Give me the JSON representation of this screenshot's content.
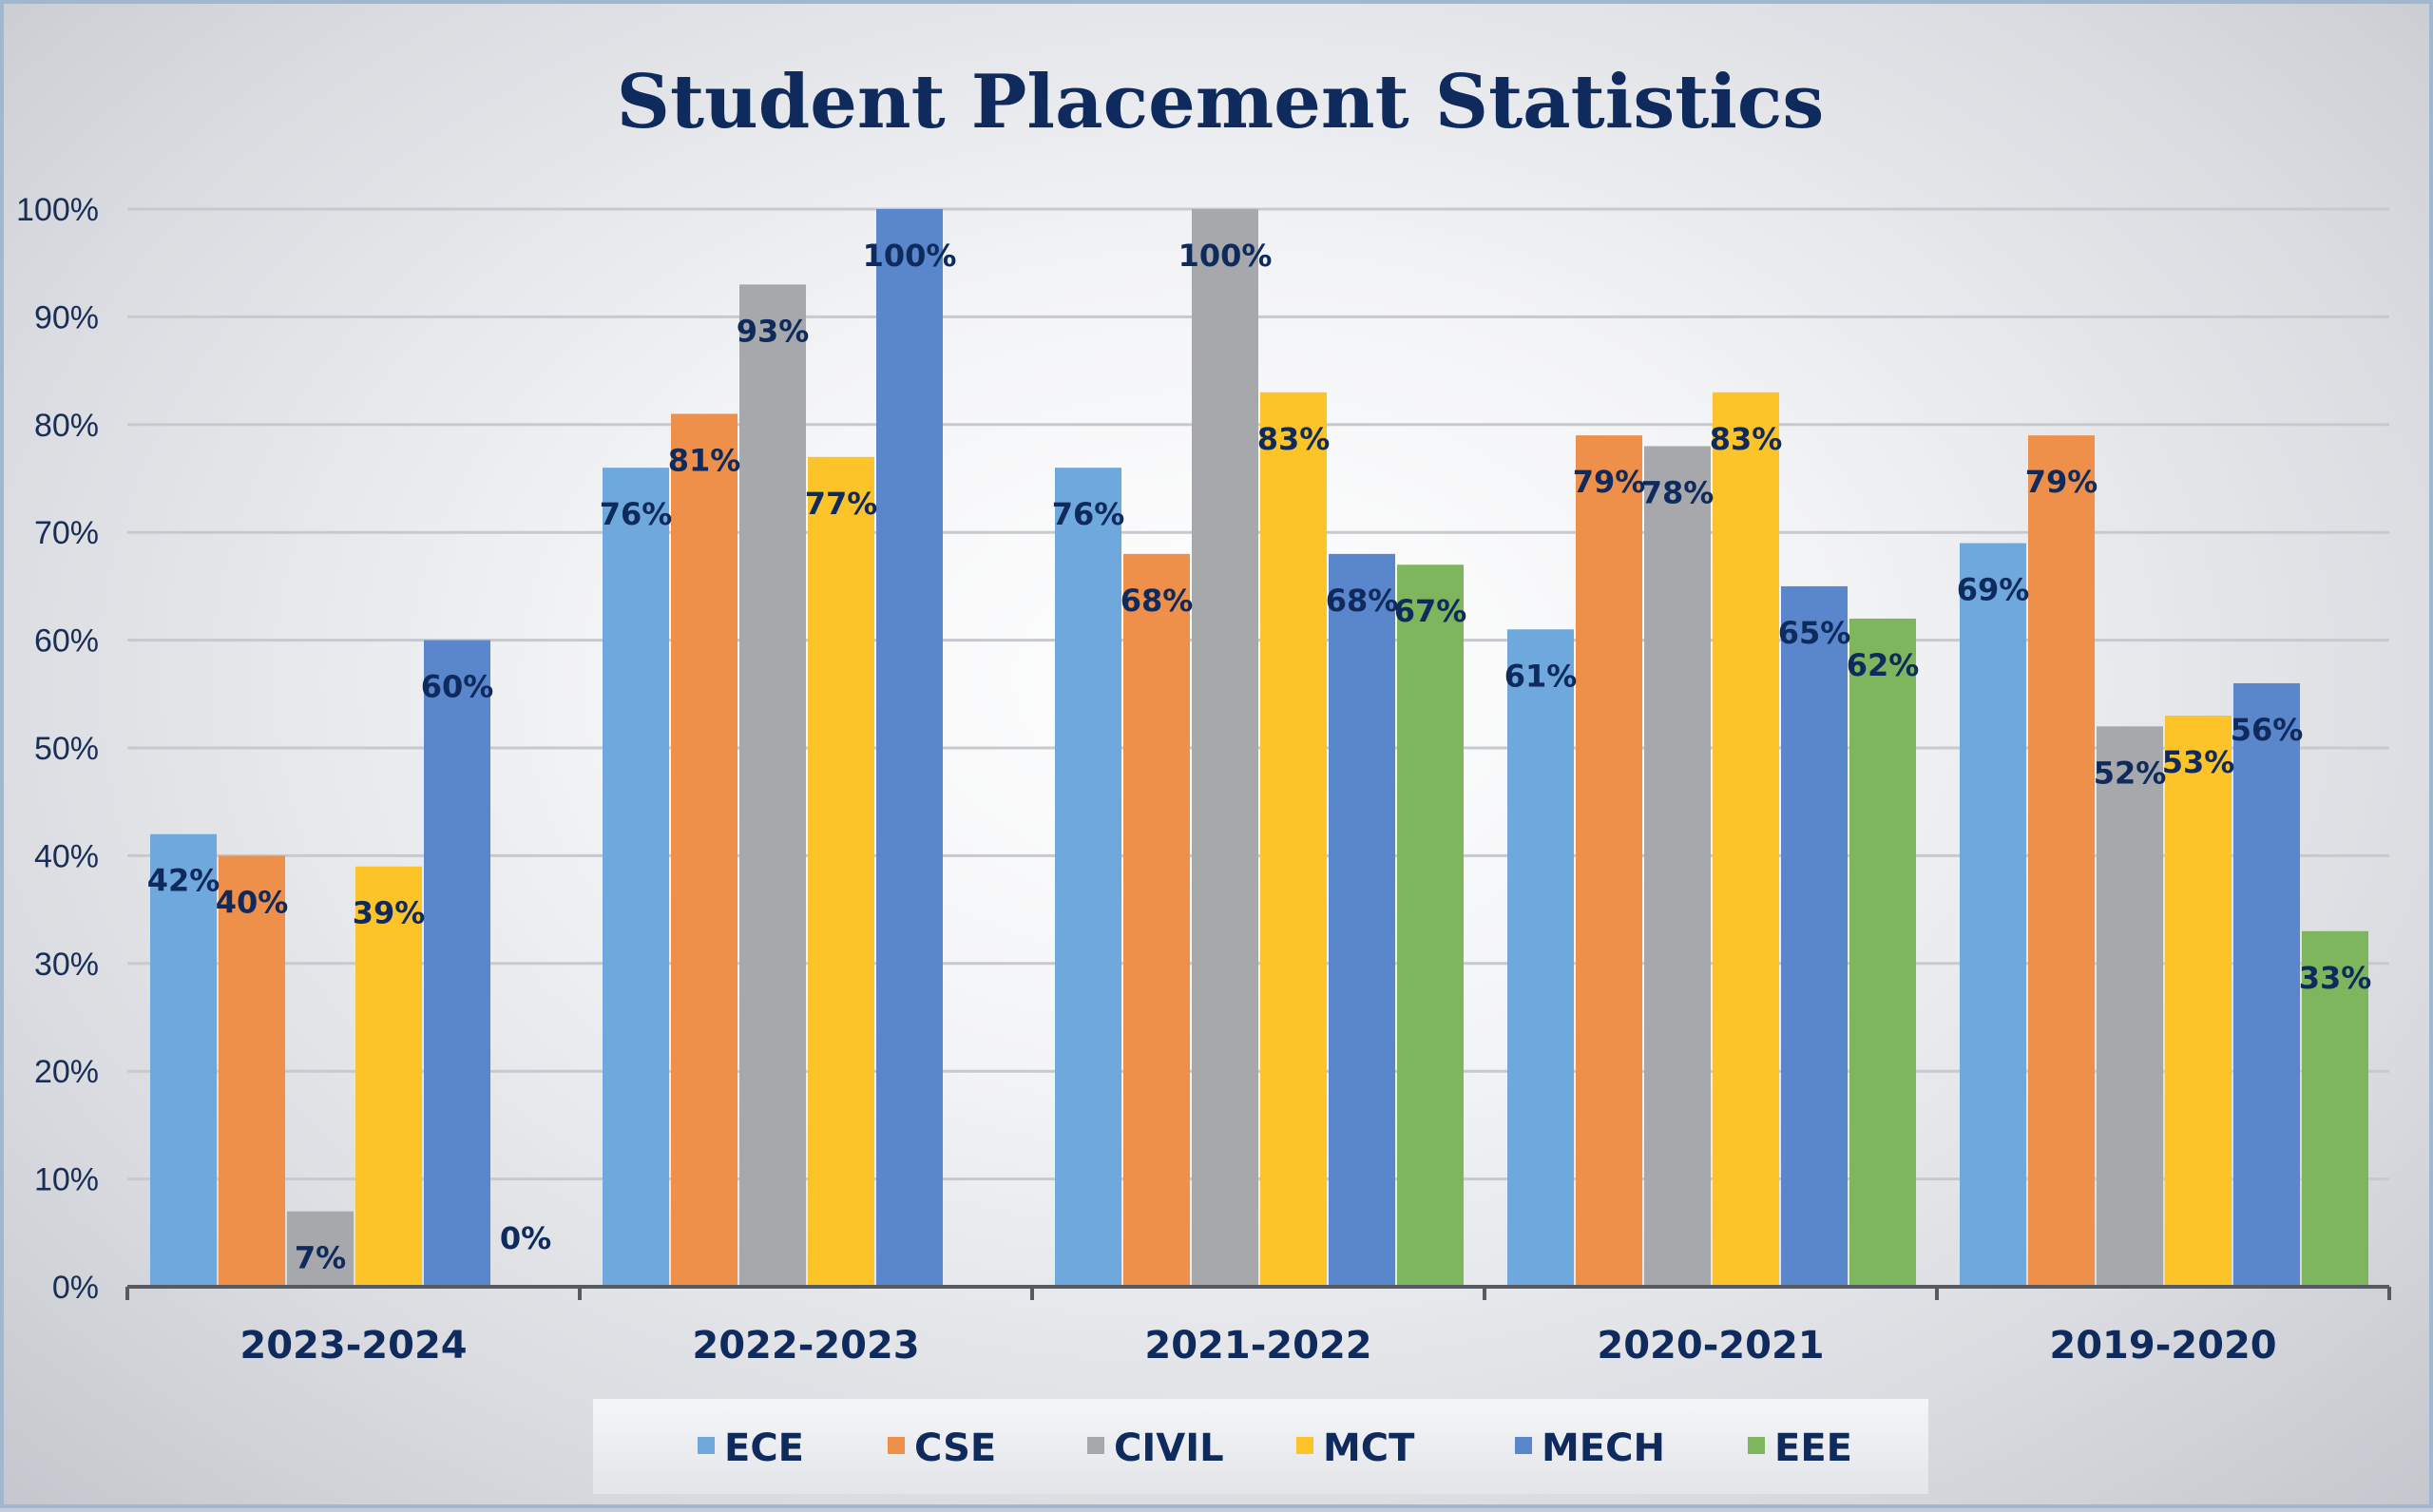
{
  "chart_data": {
    "type": "bar",
    "title": "Student Placement Statistics",
    "xlabel": "",
    "ylabel": "",
    "ylim": [
      0,
      100
    ],
    "yticks": [
      "0%",
      "10%",
      "20%",
      "30%",
      "40%",
      "50%",
      "60%",
      "70%",
      "80%",
      "90%",
      "100%"
    ],
    "categories": [
      "2023-2024",
      "2022-2023",
      "2021-2022",
      "2020-2021",
      "2019-2020"
    ],
    "series": [
      {
        "name": "ECE",
        "color": "#6fa8dc",
        "values": [
          42,
          76,
          76,
          61,
          69
        ],
        "labels": [
          "42%",
          "76%",
          "76%",
          "61%",
          "69%"
        ]
      },
      {
        "name": "CSE",
        "color": "#ee8f4a",
        "values": [
          40,
          81,
          68,
          79,
          79
        ],
        "labels": [
          "40%",
          "81%",
          "68%",
          "79%",
          "79%"
        ]
      },
      {
        "name": "CIVIL",
        "color": "#a6a8ab",
        "values": [
          7,
          93,
          100,
          78,
          52
        ],
        "labels": [
          "7%",
          "93%",
          "100%",
          "78%",
          "52%"
        ]
      },
      {
        "name": "MCT",
        "color": "#fdc429",
        "values": [
          39,
          77,
          83,
          83,
          53
        ],
        "labels": [
          "39%",
          "77%",
          "83%",
          "83%",
          "53%"
        ]
      },
      {
        "name": "MECH",
        "color": "#5a86cc",
        "values": [
          60,
          100,
          68,
          65,
          56
        ],
        "labels": [
          "60%",
          "100%",
          "68%",
          "65%",
          "56%"
        ]
      },
      {
        "name": "EEE",
        "color": "#7db65c",
        "values": [
          0,
          null,
          67,
          62,
          33
        ],
        "labels": [
          "0%",
          "",
          "67%",
          "62%",
          "33%"
        ]
      }
    ],
    "grid": true,
    "legend_position": "bottom",
    "data_labels": true
  }
}
